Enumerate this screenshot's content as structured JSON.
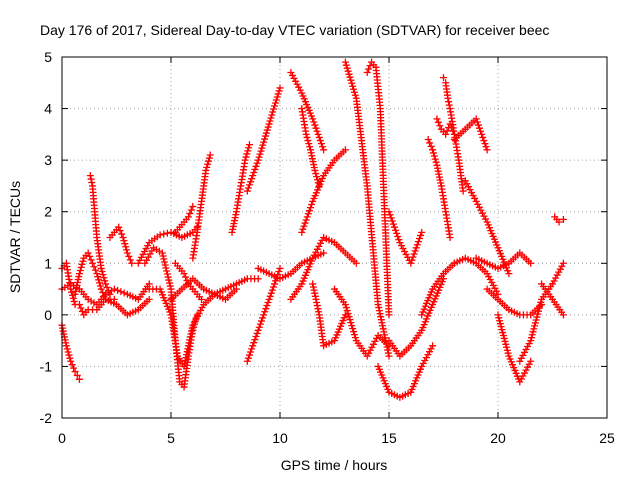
{
  "chart_data": {
    "type": "scatter",
    "title": "Day 176 of 2017, Sidereal Day-to-day VTEC variation (SDTVAR) for receiver beec",
    "xlabel": "GPS time / hours",
    "ylabel": "SDTVAR / TECUs",
    "xlim": [
      0,
      25
    ],
    "ylim": [
      -2,
      5
    ],
    "x_ticks": [
      0,
      5,
      10,
      15,
      20,
      25
    ],
    "y_ticks": [
      -2,
      -1,
      0,
      1,
      2,
      3,
      4,
      5
    ],
    "grid": true,
    "marker": "plus",
    "color": "#ff0000",
    "series": [
      {
        "x": [
          0,
          0.2,
          0.4,
          0.6
        ],
        "y": [
          0.9,
          1.0,
          0.5,
          0.2
        ]
      },
      {
        "x": [
          0,
          0.2,
          0.4,
          0.6,
          0.8
        ],
        "y": [
          -0.2,
          -0.6,
          -0.9,
          -1.1,
          -1.25
        ]
      },
      {
        "x": [
          0,
          0.4,
          0.8,
          1.2,
          1.6,
          2.0,
          2.4,
          3.0,
          3.5,
          4.0
        ],
        "y": [
          0.5,
          0.6,
          0.5,
          0.3,
          0.2,
          0.4,
          0.5,
          0.4,
          0.3,
          0.6
        ]
      },
      {
        "x": [
          0.6,
          0.8,
          1.0,
          1.2,
          1.4,
          1.6,
          1.8,
          2.0,
          2.4
        ],
        "y": [
          0.4,
          0.8,
          1.1,
          1.2,
          1.0,
          0.8,
          0.5,
          0.3,
          0.3
        ]
      },
      {
        "x": [
          1.3,
          1.4,
          1.5,
          1.6,
          1.8,
          2.0,
          2.2
        ],
        "y": [
          2.7,
          2.5,
          2.0,
          1.5,
          0.9,
          0.6,
          0.4
        ]
      },
      {
        "x": [
          0.8,
          1.0,
          1.2,
          1.6,
          2.0,
          2.5,
          3.0,
          3.5,
          4.0
        ],
        "y": [
          0.2,
          0.0,
          0.1,
          0.1,
          0.3,
          0.2,
          0.0,
          0.1,
          0.3
        ]
      },
      {
        "x": [
          2.2,
          2.4,
          2.6,
          2.8,
          3.0,
          3.2
        ],
        "y": [
          1.5,
          1.6,
          1.7,
          1.5,
          1.2,
          1.0
        ]
      },
      {
        "x": [
          3.5,
          4.0,
          4.5,
          5.0,
          5.5,
          6.0,
          6.2
        ],
        "y": [
          1.0,
          1.4,
          1.55,
          1.6,
          1.5,
          1.6,
          1.7
        ]
      },
      {
        "x": [
          3.8,
          4.2,
          4.6,
          5.0,
          5.2,
          5.4,
          5.6,
          5.8,
          6.0,
          6.2
        ],
        "y": [
          1.0,
          1.3,
          1.2,
          0.5,
          -0.5,
          -1.3,
          -1.4,
          -0.8,
          -0.3,
          0.0
        ]
      },
      {
        "x": [
          4.0,
          4.5,
          5.0,
          5.3,
          5.6,
          6.0,
          6.5,
          7.0,
          7.5,
          8.0
        ],
        "y": [
          0.5,
          0.5,
          0.0,
          -0.8,
          -1.0,
          -0.2,
          0.2,
          0.4,
          0.3,
          0.5
        ]
      },
      {
        "x": [
          5.0,
          5.5,
          6.0,
          6.5,
          7.0,
          7.5,
          8.0,
          8.5,
          9.0
        ],
        "y": [
          0.3,
          0.5,
          0.7,
          0.5,
          0.4,
          0.5,
          0.6,
          0.7,
          0.7
        ]
      },
      {
        "x": [
          5.2,
          5.4,
          5.6,
          5.8,
          6.0,
          6.2,
          6.4
        ],
        "y": [
          1.0,
          0.9,
          0.8,
          0.6,
          0.5,
          0.4,
          0.3
        ]
      },
      {
        "x": [
          5.2,
          5.4,
          5.6,
          5.8,
          6.0
        ],
        "y": [
          1.6,
          1.7,
          1.8,
          1.9,
          2.1
        ]
      },
      {
        "x": [
          6.0,
          6.2,
          6.4,
          6.6,
          6.8
        ],
        "y": [
          1.1,
          1.6,
          2.2,
          2.8,
          3.1
        ]
      },
      {
        "x": [
          7.8,
          8.0,
          8.2,
          8.4,
          8.6
        ],
        "y": [
          1.6,
          2.0,
          2.5,
          3.0,
          3.3
        ]
      },
      {
        "x": [
          8.5,
          9.0,
          9.5,
          10.0
        ],
        "y": [
          2.4,
          3.0,
          3.7,
          4.4
        ]
      },
      {
        "x": [
          8.5,
          9.0,
          9.5,
          10.0
        ],
        "y": [
          -0.9,
          -0.3,
          0.3,
          0.9
        ]
      },
      {
        "x": [
          9.0,
          9.5,
          10.0,
          10.5,
          11.0,
          11.5,
          12.0
        ],
        "y": [
          0.9,
          0.8,
          0.7,
          0.8,
          1.0,
          1.1,
          1.2
        ]
      },
      {
        "x": [
          10.5,
          11.0,
          11.5,
          12.0
        ],
        "y": [
          4.7,
          4.3,
          3.8,
          3.2
        ]
      },
      {
        "x": [
          11.0,
          11.2,
          11.4,
          11.6,
          11.8
        ],
        "y": [
          4.0,
          3.5,
          3.2,
          2.8,
          2.5
        ]
      },
      {
        "x": [
          11.0,
          11.5,
          12.0,
          12.5,
          13.0
        ],
        "y": [
          1.6,
          2.2,
          2.7,
          3.0,
          3.2
        ]
      },
      {
        "x": [
          10.5,
          11.0,
          11.5,
          12.0,
          12.5,
          13.0,
          13.5
        ],
        "y": [
          0.3,
          0.6,
          1.1,
          1.5,
          1.4,
          1.2,
          1.0
        ]
      },
      {
        "x": [
          11.5,
          11.8,
          12.0,
          12.5,
          13.0
        ],
        "y": [
          0.6,
          0.0,
          -0.6,
          -0.5,
          0.0
        ]
      },
      {
        "x": [
          13.0,
          13.5,
          14.0,
          14.5,
          15.0
        ],
        "y": [
          4.9,
          4.2,
          2.5,
          0.2,
          -0.8
        ]
      },
      {
        "x": [
          12.5,
          13.0,
          13.5,
          14.0,
          14.5,
          15.0
        ],
        "y": [
          0.5,
          0.2,
          -0.5,
          -0.8,
          -0.4,
          -0.6
        ]
      },
      {
        "x": [
          14.0,
          14.2,
          14.4,
          14.6,
          14.8,
          15.0
        ],
        "y": [
          4.7,
          4.9,
          4.8,
          4.0,
          2.0,
          0.0
        ]
      },
      {
        "x": [
          14.5,
          15.0,
          15.5,
          16.0,
          16.5,
          17.0
        ],
        "y": [
          -1.0,
          -1.5,
          -1.6,
          -1.5,
          -1.0,
          -0.6
        ]
      },
      {
        "x": [
          15.0,
          15.5,
          16.0,
          16.5,
          17.0,
          17.5
        ],
        "y": [
          -0.5,
          -0.8,
          -0.6,
          -0.3,
          0.2,
          0.7
        ]
      },
      {
        "x": [
          15.0,
          15.5,
          16.0,
          16.5
        ],
        "y": [
          2.0,
          1.4,
          1.0,
          1.6
        ]
      },
      {
        "x": [
          16.5,
          17.0,
          17.5,
          18.0
        ],
        "y": [
          0.0,
          0.5,
          0.8,
          1.0
        ]
      },
      {
        "x": [
          16.8,
          17.0,
          17.2,
          17.4,
          17.6,
          17.8
        ],
        "y": [
          3.4,
          3.2,
          2.9,
          2.5,
          2.0,
          1.5
        ]
      },
      {
        "x": [
          17.2,
          17.4,
          17.6,
          17.8,
          18.0
        ],
        "y": [
          3.8,
          3.6,
          3.5,
          3.7,
          3.5
        ]
      },
      {
        "x": [
          17.5,
          17.6,
          17.7,
          17.8,
          18.0,
          18.2,
          18.4
        ],
        "y": [
          4.6,
          4.5,
          4.2,
          4.0,
          3.5,
          3.0,
          2.4
        ]
      },
      {
        "x": [
          18.0,
          18.5,
          19.0,
          19.5
        ],
        "y": [
          3.4,
          3.6,
          3.8,
          3.2
        ]
      },
      {
        "x": [
          18.0,
          18.5,
          19.0,
          19.5,
          20.0
        ],
        "y": [
          1.0,
          1.1,
          1.0,
          0.8,
          0.4
        ]
      },
      {
        "x": [
          18.5,
          19.0,
          19.5,
          20.0,
          20.5
        ],
        "y": [
          2.6,
          2.2,
          1.8,
          1.3,
          0.8
        ]
      },
      {
        "x": [
          19.0,
          19.5,
          20.0,
          20.5,
          21.0,
          21.5
        ],
        "y": [
          1.1,
          1.0,
          0.9,
          1.0,
          1.2,
          1.0
        ]
      },
      {
        "x": [
          19.5,
          20.0,
          20.5,
          21.0,
          21.5,
          22.0
        ],
        "y": [
          0.5,
          0.3,
          0.1,
          0.0,
          0.0,
          0.2
        ]
      },
      {
        "x": [
          20.0,
          20.5,
          21.0,
          21.5
        ],
        "y": [
          0.0,
          -0.8,
          -1.3,
          -0.9
        ]
      },
      {
        "x": [
          21.0,
          21.5,
          22.0,
          22.5,
          23.0
        ],
        "y": [
          -0.9,
          -0.5,
          0.3,
          0.6,
          1.0
        ]
      },
      {
        "x": [
          22.0,
          22.5,
          23.0
        ],
        "y": [
          0.6,
          0.3,
          0.0
        ]
      },
      {
        "x": [
          22.6,
          22.8,
          23.0
        ],
        "y": [
          1.9,
          1.8,
          1.85
        ]
      }
    ]
  }
}
